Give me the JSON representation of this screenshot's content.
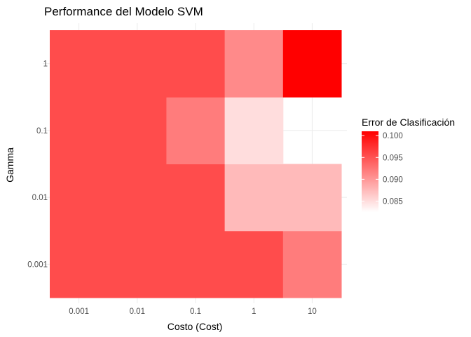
{
  "chart_data": {
    "type": "heatmap",
    "title": "Performance del Modelo SVM",
    "xlabel": "Costo (Cost)",
    "ylabel": "Gamma",
    "x_categories": [
      "0.001",
      "0.01",
      "0.1",
      "1",
      "10"
    ],
    "y_categories": [
      "0.001",
      "0.01",
      "0.1",
      "1"
    ],
    "cells": [
      {
        "x": "0.001",
        "y": "0.001",
        "value": 0.0955
      },
      {
        "x": "0.01",
        "y": "0.001",
        "value": 0.0955
      },
      {
        "x": "0.1",
        "y": "0.001",
        "value": 0.0955
      },
      {
        "x": "1",
        "y": "0.001",
        "value": 0.0955
      },
      {
        "x": "10",
        "y": "0.001",
        "value": 0.092
      },
      {
        "x": "0.001",
        "y": "0.01",
        "value": 0.0955
      },
      {
        "x": "0.01",
        "y": "0.01",
        "value": 0.0955
      },
      {
        "x": "0.1",
        "y": "0.01",
        "value": 0.0955
      },
      {
        "x": "1",
        "y": "0.01",
        "value": 0.0875
      },
      {
        "x": "10",
        "y": "0.01",
        "value": 0.0875
      },
      {
        "x": "0.001",
        "y": "0.1",
        "value": 0.0955
      },
      {
        "x": "0.01",
        "y": "0.1",
        "value": 0.0955
      },
      {
        "x": "0.1",
        "y": "0.1",
        "value": 0.092
      },
      {
        "x": "1",
        "y": "0.1",
        "value": 0.085
      },
      {
        "x": "0.001",
        "y": "1",
        "value": 0.0955
      },
      {
        "x": "0.01",
        "y": "1",
        "value": 0.0955
      },
      {
        "x": "0.1",
        "y": "1",
        "value": 0.0955
      },
      {
        "x": "1",
        "y": "1",
        "value": 0.091
      },
      {
        "x": "10",
        "y": "1",
        "value": 0.101
      }
    ],
    "legend": {
      "title": "Error de Clasificación",
      "placement": "right",
      "ticks": [
        "0.085",
        "0.090",
        "0.095",
        "0.100"
      ],
      "tick_values": [
        0.085,
        0.09,
        0.095,
        0.1
      ],
      "range": [
        0.0825,
        0.101
      ],
      "low_color": "#ffffff",
      "high_color": "#ff0000"
    },
    "grid": true
  }
}
